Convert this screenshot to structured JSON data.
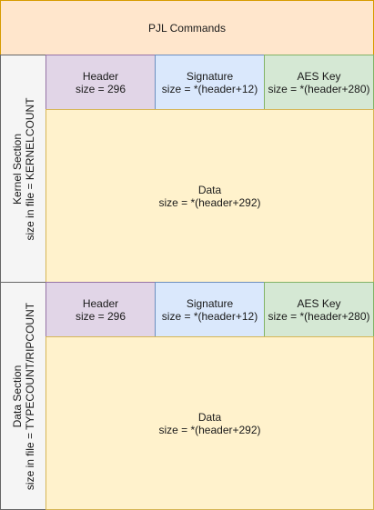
{
  "pjl": {
    "label": "PJL Commands"
  },
  "kernel_section": {
    "title": "Kernel Section",
    "size_text": "size in file = KERNELCOUNT",
    "header": {
      "title": "Header",
      "size": "size = 296"
    },
    "signature": {
      "title": "Signature",
      "size": "size = *(header+12)"
    },
    "aes_key": {
      "title": "AES Key",
      "size": "size = *(header+280)"
    },
    "data": {
      "title": "Data",
      "size": "size = *(header+292)"
    }
  },
  "data_section": {
    "title": "Data Section",
    "size_text": "size in file = TYPECOUNT/RIPCOUNT",
    "header": {
      "title": "Header",
      "size": "size = 296"
    },
    "signature": {
      "title": "Signature",
      "size": "size = *(header+12)"
    },
    "aes_key": {
      "title": "AES Key",
      "size": "size = *(header+280)"
    },
    "data": {
      "title": "Data",
      "size": "size = *(header+292)"
    }
  },
  "colors": {
    "pjl_fill": "#ffe6cc",
    "section_label_fill": "#f5f5f5",
    "header_fill": "#e1d5e7",
    "signature_fill": "#dae8fc",
    "aes_key_fill": "#d5e8d4",
    "data_fill": "#fff2cc"
  }
}
